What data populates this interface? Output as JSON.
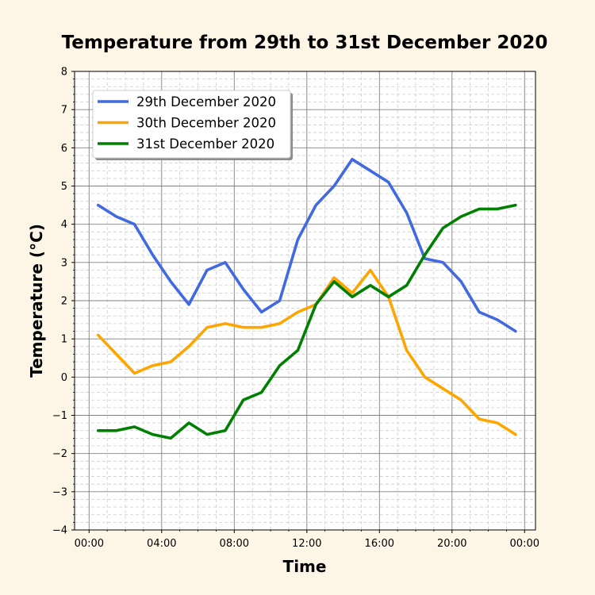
{
  "chart_data": {
    "type": "line",
    "title": "Temperature from 29th to 31st December 2020",
    "xlabel": "Time",
    "ylabel": "Temperature (°C)",
    "ylim": [
      -4,
      8
    ],
    "yticks": [
      "−4",
      "−3",
      "−2",
      "−1",
      "0",
      "1",
      "2",
      "3",
      "4",
      "5",
      "6",
      "7",
      "8"
    ],
    "xticks": [
      "00:00",
      "04:00",
      "08:00",
      "12:00",
      "16:00",
      "20:00",
      "00:00"
    ],
    "grid": true,
    "legend_position": "upper left",
    "x": [
      "00:30",
      "01:30",
      "02:30",
      "03:30",
      "04:30",
      "05:30",
      "06:30",
      "07:30",
      "08:30",
      "09:30",
      "10:30",
      "11:30",
      "12:30",
      "13:30",
      "14:30",
      "15:30",
      "16:30",
      "17:30",
      "18:30",
      "19:30",
      "20:30",
      "21:30",
      "22:30",
      "23:30"
    ],
    "series": [
      {
        "name": "29th December 2020",
        "color": "#4169e1",
        "values": [
          4.5,
          4.2,
          4.0,
          3.2,
          2.5,
          1.9,
          2.8,
          3.0,
          2.3,
          1.7,
          2.0,
          3.6,
          4.5,
          5.0,
          5.7,
          5.4,
          5.1,
          4.3,
          3.1,
          3.0,
          2.5,
          1.7,
          1.5,
          1.2
        ]
      },
      {
        "name": "30th December 2020",
        "color": "#ffa500",
        "values": [
          1.1,
          0.6,
          0.1,
          0.3,
          0.4,
          0.8,
          1.3,
          1.4,
          1.3,
          1.3,
          1.4,
          1.7,
          1.9,
          2.6,
          2.2,
          2.8,
          2.1,
          0.7,
          0.0,
          -0.3,
          -0.6,
          -1.1,
          -1.2,
          -1.5
        ]
      },
      {
        "name": "31st December 2020",
        "color": "#008000",
        "values": [
          -1.4,
          -1.4,
          -1.3,
          -1.5,
          -1.6,
          -1.2,
          -1.5,
          -1.4,
          -0.6,
          -0.4,
          0.3,
          0.7,
          1.9,
          2.5,
          2.1,
          2.4,
          2.1,
          2.4,
          3.2,
          3.9,
          4.2,
          4.4,
          4.4,
          4.5
        ]
      }
    ]
  }
}
